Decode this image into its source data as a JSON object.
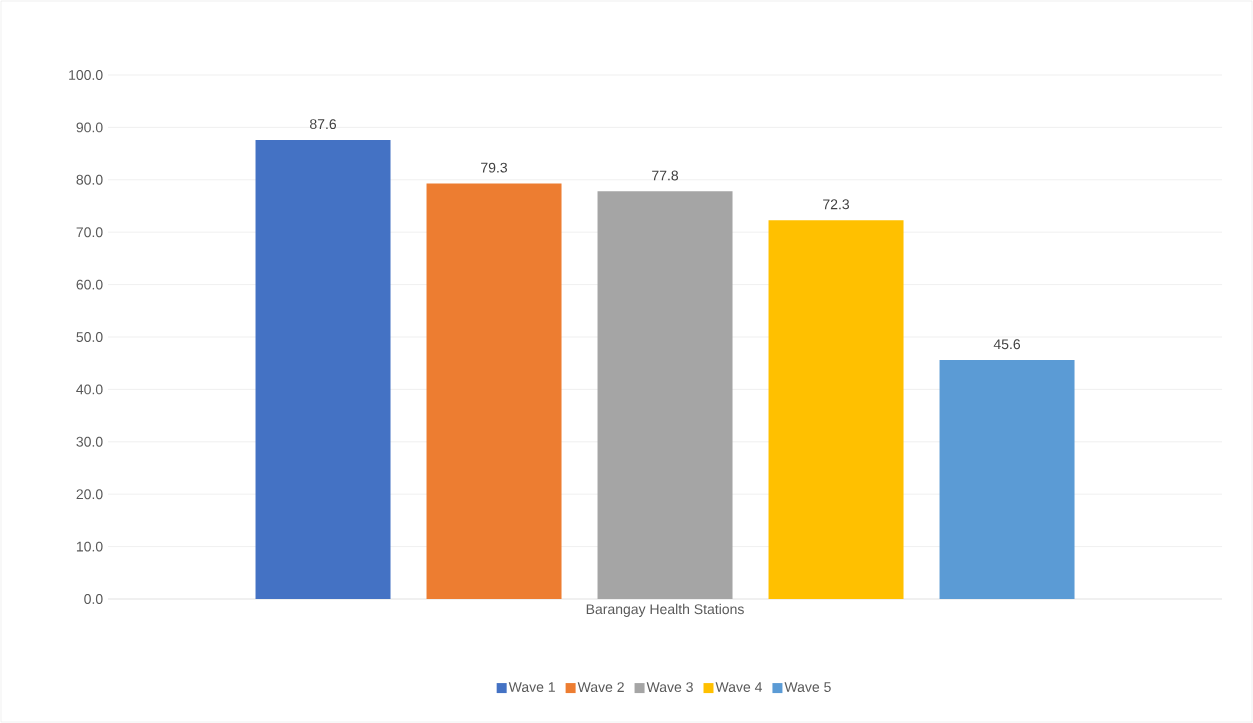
{
  "chart_data": {
    "type": "bar",
    "categories": [
      "Barangay Health Stations"
    ],
    "series": [
      {
        "name": "Wave 1",
        "color": "#4472c4",
        "values": [
          87.6
        ]
      },
      {
        "name": "Wave 2",
        "color": "#ed7d31",
        "values": [
          79.3
        ]
      },
      {
        "name": "Wave 3",
        "color": "#a5a5a5",
        "values": [
          77.8
        ]
      },
      {
        "name": "Wave 4",
        "color": "#ffc000",
        "values": [
          72.3
        ]
      },
      {
        "name": "Wave 5",
        "color": "#5b9bd5",
        "values": [
          45.6
        ]
      }
    ],
    "ylim": [
      0,
      100
    ],
    "yticks": [
      {
        "value": 0,
        "label": "0.0"
      },
      {
        "value": 10,
        "label": "10.0"
      },
      {
        "value": 20,
        "label": "20.0"
      },
      {
        "value": 30,
        "label": "30.0"
      },
      {
        "value": 40,
        "label": "40.0"
      },
      {
        "value": 50,
        "label": "50.0"
      },
      {
        "value": 60,
        "label": "60.0"
      },
      {
        "value": 70,
        "label": "70.0"
      },
      {
        "value": 80,
        "label": "80.0"
      },
      {
        "value": 90,
        "label": "90.0"
      },
      {
        "value": 100,
        "label": "100.0"
      }
    ],
    "grid": "y",
    "legend": "bottom",
    "data_labels": true
  }
}
